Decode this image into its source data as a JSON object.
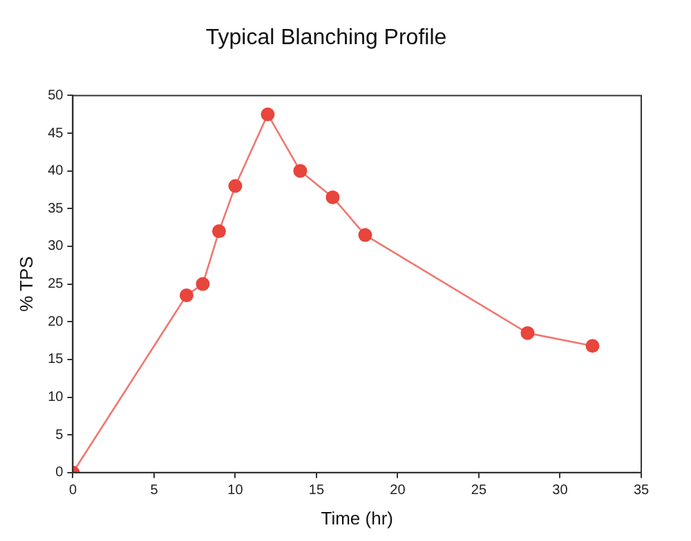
{
  "chart_data": {
    "type": "line",
    "title": "Typical Blanching Profile",
    "xlabel": "Time (hr)",
    "ylabel": "% TPS",
    "marker": "circle",
    "line_style": "solid",
    "grid": false,
    "legend": false,
    "series": [
      {
        "color": "#e8453c",
        "x": [
          0,
          7,
          8,
          9,
          10,
          12,
          14,
          16,
          18,
          28,
          32
        ],
        "values": [
          0,
          23.5,
          25,
          32,
          38,
          47.5,
          40,
          36.5,
          31.5,
          18.5,
          16.8
        ]
      }
    ],
    "xlim": [
      0,
      35
    ],
    "xticks": [
      0,
      5,
      10,
      15,
      20,
      25,
      30,
      35
    ],
    "ylim": [
      0,
      50
    ],
    "yticks": [
      0,
      5,
      10,
      15,
      20,
      25,
      30,
      35,
      40,
      45,
      50
    ]
  }
}
